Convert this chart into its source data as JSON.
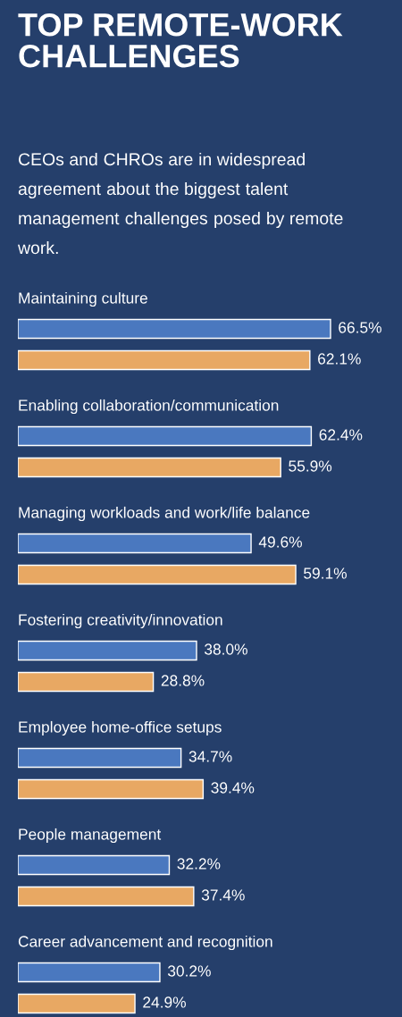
{
  "chart_data": {
    "type": "bar",
    "orientation": "horizontal",
    "legend": false,
    "title": "TOP REMOTE-WORK CHALLENGES",
    "subtitle": "CEOs and CHROs are in widespread agreement about the biggest talent management challenges posed by remote work.",
    "categories": [
      "Maintaining culture",
      "Enabling collaboration/communication",
      "Managing workloads and work/life balance",
      "Fostering creativity/innovation",
      "Employee home-office setups",
      "People management",
      "Career advancement and recognition"
    ],
    "series": [
      {
        "color": "#4a78bf",
        "values": [
          66.5,
          62.4,
          49.6,
          38.0,
          34.7,
          32.2,
          30.2
        ],
        "value_labels": [
          "66.5%",
          "62.4%",
          "49.6%",
          "38.0%",
          "34.7%",
          "32.2%",
          "30.2%"
        ]
      },
      {
        "color": "#e8a863",
        "values": [
          62.1,
          55.9,
          59.1,
          28.8,
          39.4,
          37.4,
          24.9
        ],
        "value_labels": [
          "62.1%",
          "55.9%",
          "59.1%",
          "28.8%",
          "39.4%",
          "37.4%",
          "24.9%"
        ]
      }
    ]
  }
}
